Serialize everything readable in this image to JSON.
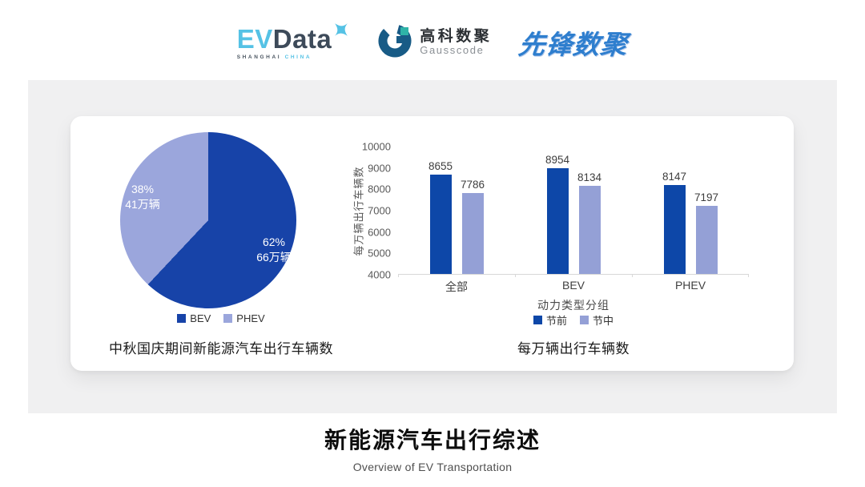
{
  "header": {
    "evdata": {
      "ev": "EV",
      "data": "Data",
      "tagline_left": "SHANGHAI",
      "tagline_right": "CHINA",
      "ev_color": "#55C2E5",
      "data_color": "#3D4A59"
    },
    "gausscode": {
      "cn": "高科数聚",
      "en": "Gausscode",
      "mark_color": "#185B86",
      "mark_accent": "#2FB3A8"
    },
    "xianfeng": {
      "text": "先锋数聚",
      "color": "#2E7ECE"
    }
  },
  "chart_data": [
    {
      "type": "pie",
      "title": "中秋国庆期间新能源汽车出行车辆数",
      "labels": [
        "BEV",
        "PHEV"
      ],
      "values": [
        62,
        38
      ],
      "slice_texts": [
        [
          "62%",
          "66万辆"
        ],
        [
          "38%",
          "41万辆"
        ]
      ],
      "colors": [
        "#1743A8",
        "#9BA6DC"
      ],
      "start_angle_deg": 0,
      "direction": "clockwise",
      "legend_position": "bottom"
    },
    {
      "type": "bar",
      "title": "每万辆出行车辆数",
      "categories": [
        "全部",
        "BEV",
        "PHEV"
      ],
      "series": [
        {
          "name": "节前",
          "values": [
            8655,
            8954,
            8147
          ],
          "color": "#0D47A8"
        },
        {
          "name": "节中",
          "values": [
            7786,
            8134,
            7197
          ],
          "color": "#94A0D6"
        }
      ],
      "xlabel": "动力类型分组",
      "ylabel": "每万辆出行车辆数",
      "ylim": [
        4000,
        10000
      ],
      "yticks": [
        4000,
        5000,
        6000,
        7000,
        8000,
        9000,
        10000
      ],
      "grid": false,
      "legend_position": "bottom"
    }
  ],
  "footer": {
    "title": "新能源汽车出行综述",
    "subtitle": "Overview of EV Transportation"
  }
}
